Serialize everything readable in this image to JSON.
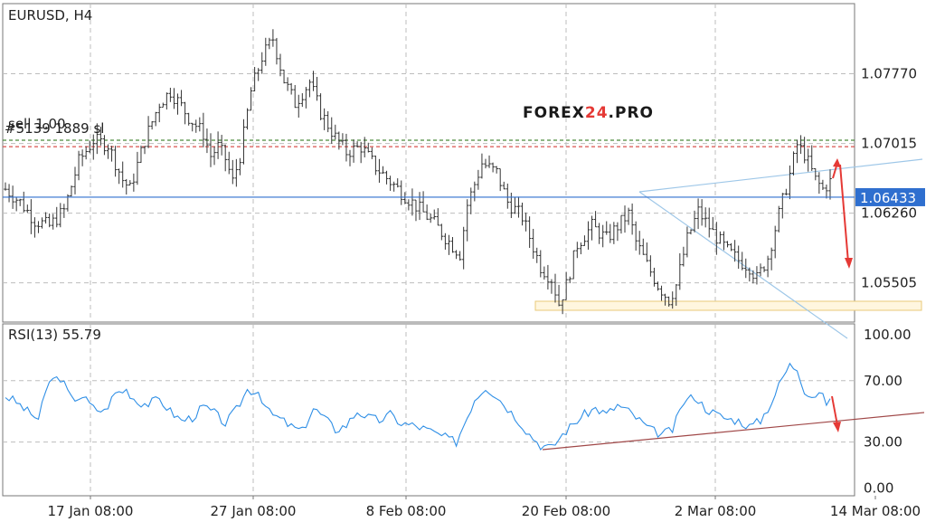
{
  "chart_data": [
    {
      "type": "candlestick",
      "title": "EURUSD, H4",
      "y_ticks": [
        "1.07770",
        "1.07015",
        "1.06260",
        "1.05505"
      ],
      "y_tick_values": [
        1.0777,
        1.07015,
        1.0626,
        1.05505
      ],
      "ylim": [
        1.0508,
        1.0853
      ],
      "current_price": 1.06433,
      "current_price_label": "1.06433",
      "order_labels": [
        "sell 1.00",
        "#5139 1889 sl"
      ],
      "sell_level": 1.0705,
      "sl_level": 1.0698,
      "x_ticks": [
        "17 Jan 08:00",
        "27 Jan 08:00",
        "8 Feb 08:00",
        "20 Feb 08:00",
        "2 Mar 08:00",
        "14 Mar 08:00"
      ],
      "grid": true,
      "candle_color": "#333333",
      "current_price_color": "#2f6fcf",
      "logo": {
        "text_a": "FOREX",
        "text_b": "24",
        "text_c": ".PRO"
      },
      "close_path": [
        [
          0,
          1.0652
        ],
        [
          4,
          1.0638
        ],
        [
          8,
          1.0618
        ],
        [
          12,
          1.0612
        ],
        [
          16,
          1.0629
        ],
        [
          20,
          1.0682
        ],
        [
          24,
          1.0705
        ],
        [
          28,
          1.07
        ],
        [
          32,
          1.0662
        ],
        [
          34,
          1.0652
        ],
        [
          38,
          1.0705
        ],
        [
          42,
          1.0745
        ],
        [
          45,
          1.0758
        ],
        [
          48,
          1.0742
        ],
        [
          50,
          1.073
        ],
        [
          54,
          1.0712
        ],
        [
          56,
          1.0688
        ],
        [
          58,
          1.0698
        ],
        [
          60,
          1.0685
        ],
        [
          62,
          1.066
        ],
        [
          64,
          1.0688
        ],
        [
          67,
          1.0758
        ],
        [
          70,
          1.0795
        ],
        [
          73,
          1.0815
        ],
        [
          76,
          1.077
        ],
        [
          79,
          1.0745
        ],
        [
          83,
          1.0768
        ],
        [
          86,
          1.0735
        ],
        [
          90,
          1.0708
        ],
        [
          93,
          1.0692
        ],
        [
          97,
          1.0698
        ],
        [
          101,
          1.0676
        ],
        [
          105,
          1.066
        ],
        [
          109,
          1.0645
        ],
        [
          113,
          1.063
        ],
        [
          117,
          1.0615
        ],
        [
          121,
          1.0595
        ],
        [
          124,
          1.0582
        ],
        [
          126,
          1.0635
        ],
        [
          130,
          1.068
        ],
        [
          134,
          1.067
        ],
        [
          137,
          1.0638
        ],
        [
          141,
          1.0622
        ],
        [
          143,
          1.06
        ],
        [
          146,
          1.0568
        ],
        [
          149,
          1.0555
        ],
        [
          151,
          1.0528
        ],
        [
          153,
          1.0548
        ],
        [
          156,
          1.0592
        ],
        [
          160,
          1.0612
        ],
        [
          164,
          1.0598
        ],
        [
          167,
          1.0612
        ],
        [
          170,
          1.0625
        ],
        [
          172,
          1.0595
        ],
        [
          175,
          1.057
        ],
        [
          178,
          1.0548
        ],
        [
          181,
          1.0532
        ],
        [
          183,
          1.0548
        ],
        [
          186,
          1.0598
        ],
        [
          189,
          1.0628
        ],
        [
          193,
          1.0605
        ],
        [
          197,
          1.0585
        ],
        [
          200,
          1.0575
        ],
        [
          203,
          1.0568
        ],
        [
          205,
          1.0555
        ],
        [
          208,
          1.0578
        ],
        [
          211,
          1.0625
        ],
        [
          214,
          1.0668
        ],
        [
          216,
          1.07
        ],
        [
          218,
          1.069
        ],
        [
          221,
          1.0662
        ],
        [
          223,
          1.0652
        ],
        [
          225,
          1.066
        ]
      ]
    },
    {
      "type": "line",
      "title": "RSI(13) 55.79",
      "y_ticks": [
        "100.00",
        "70.00",
        "30.00",
        "0.00"
      ],
      "y_tick_values": [
        100,
        70,
        30,
        0
      ],
      "ylim": [
        -5,
        107
      ],
      "current_value": 55.79,
      "line_color": "#2f8fe6",
      "trend_color": "#a04848",
      "arrow_color": "#e53935",
      "path": [
        [
          0,
          60
        ],
        [
          3,
          56
        ],
        [
          6,
          50
        ],
        [
          9,
          45
        ],
        [
          12,
          70
        ],
        [
          15,
          72
        ],
        [
          18,
          58
        ],
        [
          21,
          60
        ],
        [
          24,
          52
        ],
        [
          27,
          50
        ],
        [
          30,
          62
        ],
        [
          33,
          64
        ],
        [
          36,
          56
        ],
        [
          39,
          55
        ],
        [
          42,
          58
        ],
        [
          45,
          50
        ],
        [
          48,
          44
        ],
        [
          51,
          46
        ],
        [
          54,
          53
        ],
        [
          57,
          49
        ],
        [
          60,
          42
        ],
        [
          63,
          51
        ],
        [
          66,
          64
        ],
        [
          69,
          63
        ],
        [
          72,
          49
        ],
        [
          75,
          45
        ],
        [
          78,
          40
        ],
        [
          81,
          37
        ],
        [
          84,
          52
        ],
        [
          87,
          46
        ],
        [
          90,
          38
        ],
        [
          93,
          41
        ],
        [
          96,
          50
        ],
        [
          99,
          46
        ],
        [
          102,
          44
        ],
        [
          105,
          48
        ],
        [
          108,
          42
        ],
        [
          111,
          41
        ],
        [
          114,
          39
        ],
        [
          117,
          36
        ],
        [
          120,
          33
        ],
        [
          123,
          30
        ],
        [
          125,
          41
        ],
        [
          128,
          58
        ],
        [
          131,
          66
        ],
        [
          134,
          60
        ],
        [
          137,
          52
        ],
        [
          140,
          44
        ],
        [
          143,
          35
        ],
        [
          146,
          28
        ],
        [
          149,
          26
        ],
        [
          152,
          35
        ],
        [
          155,
          42
        ],
        [
          158,
          48
        ],
        [
          161,
          52
        ],
        [
          164,
          48
        ],
        [
          167,
          54
        ],
        [
          170,
          50
        ],
        [
          173,
          44
        ],
        [
          176,
          38
        ],
        [
          179,
          35
        ],
        [
          182,
          38
        ],
        [
          185,
          56
        ],
        [
          188,
          60
        ],
        [
          191,
          52
        ],
        [
          194,
          48
        ],
        [
          197,
          45
        ],
        [
          200,
          44
        ],
        [
          203,
          40
        ],
        [
          206,
          44
        ],
        [
          209,
          56
        ],
        [
          212,
          72
        ],
        [
          214,
          80
        ],
        [
          216,
          78
        ],
        [
          218,
          64
        ],
        [
          220,
          60
        ],
        [
          222,
          62
        ],
        [
          224,
          56
        ],
        [
          225,
          56
        ]
      ]
    }
  ]
}
